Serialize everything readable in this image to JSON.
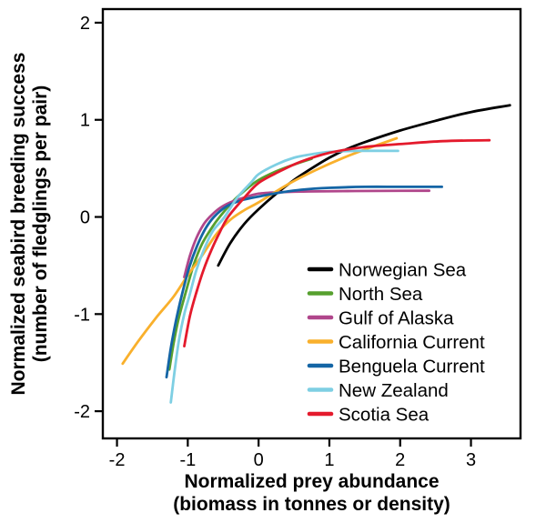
{
  "chart_data": {
    "type": "line",
    "title": "",
    "xlabel_line1": "Normalized prey abundance",
    "xlabel_line2": "(biomass in tonnes or density)",
    "ylabel_line1": "Normalized seabird breeding success",
    "ylabel_line2": "(number of fledglings per pair)",
    "xlim": [
      -2.2,
      3.7
    ],
    "ylim": [
      -2.28,
      2.14
    ],
    "xticks": [
      -2,
      -1,
      0,
      1,
      2,
      3
    ],
    "yticks": [
      -2,
      -1,
      0,
      1,
      2
    ],
    "grid": false,
    "legend_position": "inside-bottom-right",
    "axis_color": "#000000",
    "series": [
      {
        "name": "Norwegian Sea",
        "color": "#000000",
        "points": [
          [
            -0.57,
            -0.5
          ],
          [
            -0.4,
            -0.27
          ],
          [
            -0.2,
            -0.07
          ],
          [
            0,
            0.08
          ],
          [
            0.25,
            0.24
          ],
          [
            0.5,
            0.38
          ],
          [
            0.75,
            0.5
          ],
          [
            1,
            0.61
          ],
          [
            1.25,
            0.7
          ],
          [
            1.5,
            0.77
          ],
          [
            2,
            0.89
          ],
          [
            2.5,
            0.99
          ],
          [
            3,
            1.08
          ],
          [
            3.55,
            1.15
          ]
        ]
      },
      {
        "name": "North Sea",
        "color": "#56a02e",
        "points": [
          [
            -1.26,
            -1.57
          ],
          [
            -1.2,
            -1.3
          ],
          [
            -1.13,
            -1.05
          ],
          [
            -1.03,
            -0.78
          ],
          [
            -0.92,
            -0.5
          ],
          [
            -0.8,
            -0.28
          ],
          [
            -0.65,
            -0.1
          ],
          [
            -0.55,
            0
          ],
          [
            -0.35,
            0.17
          ],
          [
            -0.15,
            0.3
          ],
          [
            0,
            0.38
          ],
          [
            0.25,
            0.47
          ],
          [
            0.5,
            0.54
          ],
          [
            0.75,
            0.6
          ]
        ]
      },
      {
        "name": "Gulf of Alaska",
        "color": "#b0468b",
        "points": [
          [
            -1.05,
            -0.62
          ],
          [
            -0.97,
            -0.4
          ],
          [
            -0.88,
            -0.22
          ],
          [
            -0.78,
            -0.08
          ],
          [
            -0.69,
            0
          ],
          [
            -0.55,
            0.09
          ],
          [
            -0.4,
            0.15
          ],
          [
            -0.2,
            0.2
          ],
          [
            0,
            0.24
          ],
          [
            0.3,
            0.255
          ],
          [
            0.7,
            0.262
          ],
          [
            1.2,
            0.266
          ],
          [
            1.7,
            0.268
          ],
          [
            2.41,
            0.27
          ]
        ]
      },
      {
        "name": "California Current",
        "color": "#f9b02c",
        "points": [
          [
            -1.92,
            -1.51
          ],
          [
            -1.7,
            -1.28
          ],
          [
            -1.45,
            -1.04
          ],
          [
            -1.2,
            -0.82
          ],
          [
            -1,
            -0.6
          ],
          [
            -0.8,
            -0.4
          ],
          [
            -0.6,
            -0.18
          ],
          [
            -0.4,
            -0.03
          ],
          [
            -0.2,
            0.07
          ],
          [
            0,
            0.15
          ],
          [
            0.4,
            0.33
          ],
          [
            0.8,
            0.48
          ],
          [
            1.2,
            0.61
          ],
          [
            1.6,
            0.72
          ],
          [
            1.95,
            0.81
          ]
        ]
      },
      {
        "name": "Benguela Current",
        "color": "#1465a5",
        "points": [
          [
            -1.3,
            -1.65
          ],
          [
            -1.24,
            -1.35
          ],
          [
            -1.17,
            -1.08
          ],
          [
            -1.09,
            -0.82
          ],
          [
            -0.98,
            -0.52
          ],
          [
            -0.87,
            -0.3
          ],
          [
            -0.75,
            -0.12
          ],
          [
            -0.63,
            0
          ],
          [
            -0.45,
            0.11
          ],
          [
            -0.25,
            0.17
          ],
          [
            0,
            0.21
          ],
          [
            0.3,
            0.25
          ],
          [
            0.6,
            0.28
          ],
          [
            1,
            0.3
          ],
          [
            1.5,
            0.31
          ],
          [
            2,
            0.31
          ],
          [
            2.59,
            0.31
          ]
        ]
      },
      {
        "name": "New Zealand",
        "color": "#7ecfe3",
        "points": [
          [
            -1.24,
            -1.91
          ],
          [
            -1.18,
            -1.55
          ],
          [
            -1.12,
            -1.25
          ],
          [
            -1.05,
            -1
          ],
          [
            -0.98,
            -0.82
          ],
          [
            -0.88,
            -0.55
          ],
          [
            -0.78,
            -0.35
          ],
          [
            -0.65,
            -0.15
          ],
          [
            -0.48,
            0
          ],
          [
            -0.3,
            0.2
          ],
          [
            -0.1,
            0.36
          ],
          [
            0,
            0.44
          ],
          [
            0.25,
            0.54
          ],
          [
            0.5,
            0.61
          ],
          [
            0.75,
            0.645
          ],
          [
            1,
            0.67
          ],
          [
            1.4,
            0.68
          ],
          [
            1.97,
            0.68
          ]
        ]
      },
      {
        "name": "Scotia Sea",
        "color": "#e41a2c",
        "points": [
          [
            -1.05,
            -1.33
          ],
          [
            -0.97,
            -1.02
          ],
          [
            -0.88,
            -0.78
          ],
          [
            -0.78,
            -0.55
          ],
          [
            -0.66,
            -0.33
          ],
          [
            -0.55,
            -0.16
          ],
          [
            -0.43,
            0
          ],
          [
            -0.2,
            0.2
          ],
          [
            0,
            0.35
          ],
          [
            0.3,
            0.47
          ],
          [
            0.6,
            0.57
          ],
          [
            1,
            0.66
          ],
          [
            1.5,
            0.72
          ],
          [
            2,
            0.75
          ],
          [
            2.6,
            0.78
          ],
          [
            3.26,
            0.79
          ]
        ]
      }
    ]
  }
}
